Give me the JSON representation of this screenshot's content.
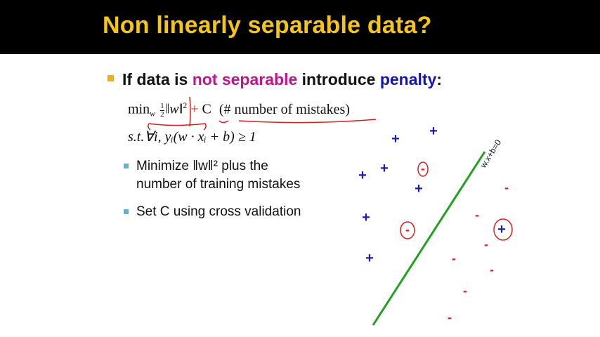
{
  "title": "Non linearly separable data?",
  "bullet": {
    "prefix": "If data is ",
    "keyword1": "not separable",
    "middle": " introduce ",
    "keyword2": "penalty",
    "suffix": ":"
  },
  "formula": {
    "min": "min",
    "min_sub": "w",
    "half_num": "1",
    "half_den": "2",
    "norm_w": "‖w‖",
    "power": "2",
    "plus": "+",
    "c": "C",
    "mistakes": "(# number of mistakes)",
    "constraint": "s.t.∀i, yᵢ(w · xᵢ + b) ≥ 1"
  },
  "sub_bullets": [
    {
      "line1": "Minimize ‖w‖² plus the",
      "line2": "number of training mistakes"
    },
    {
      "line1": "Set C using cross validation"
    }
  ],
  "plot": {
    "boundary_label": "w.x+b=0",
    "positive_symbol": "+",
    "negative_symbol": "-",
    "colors": {
      "positive": "#1a1ab4",
      "negative": "#d42020",
      "boundary": "#22a022",
      "annotation": "#d42020"
    }
  }
}
